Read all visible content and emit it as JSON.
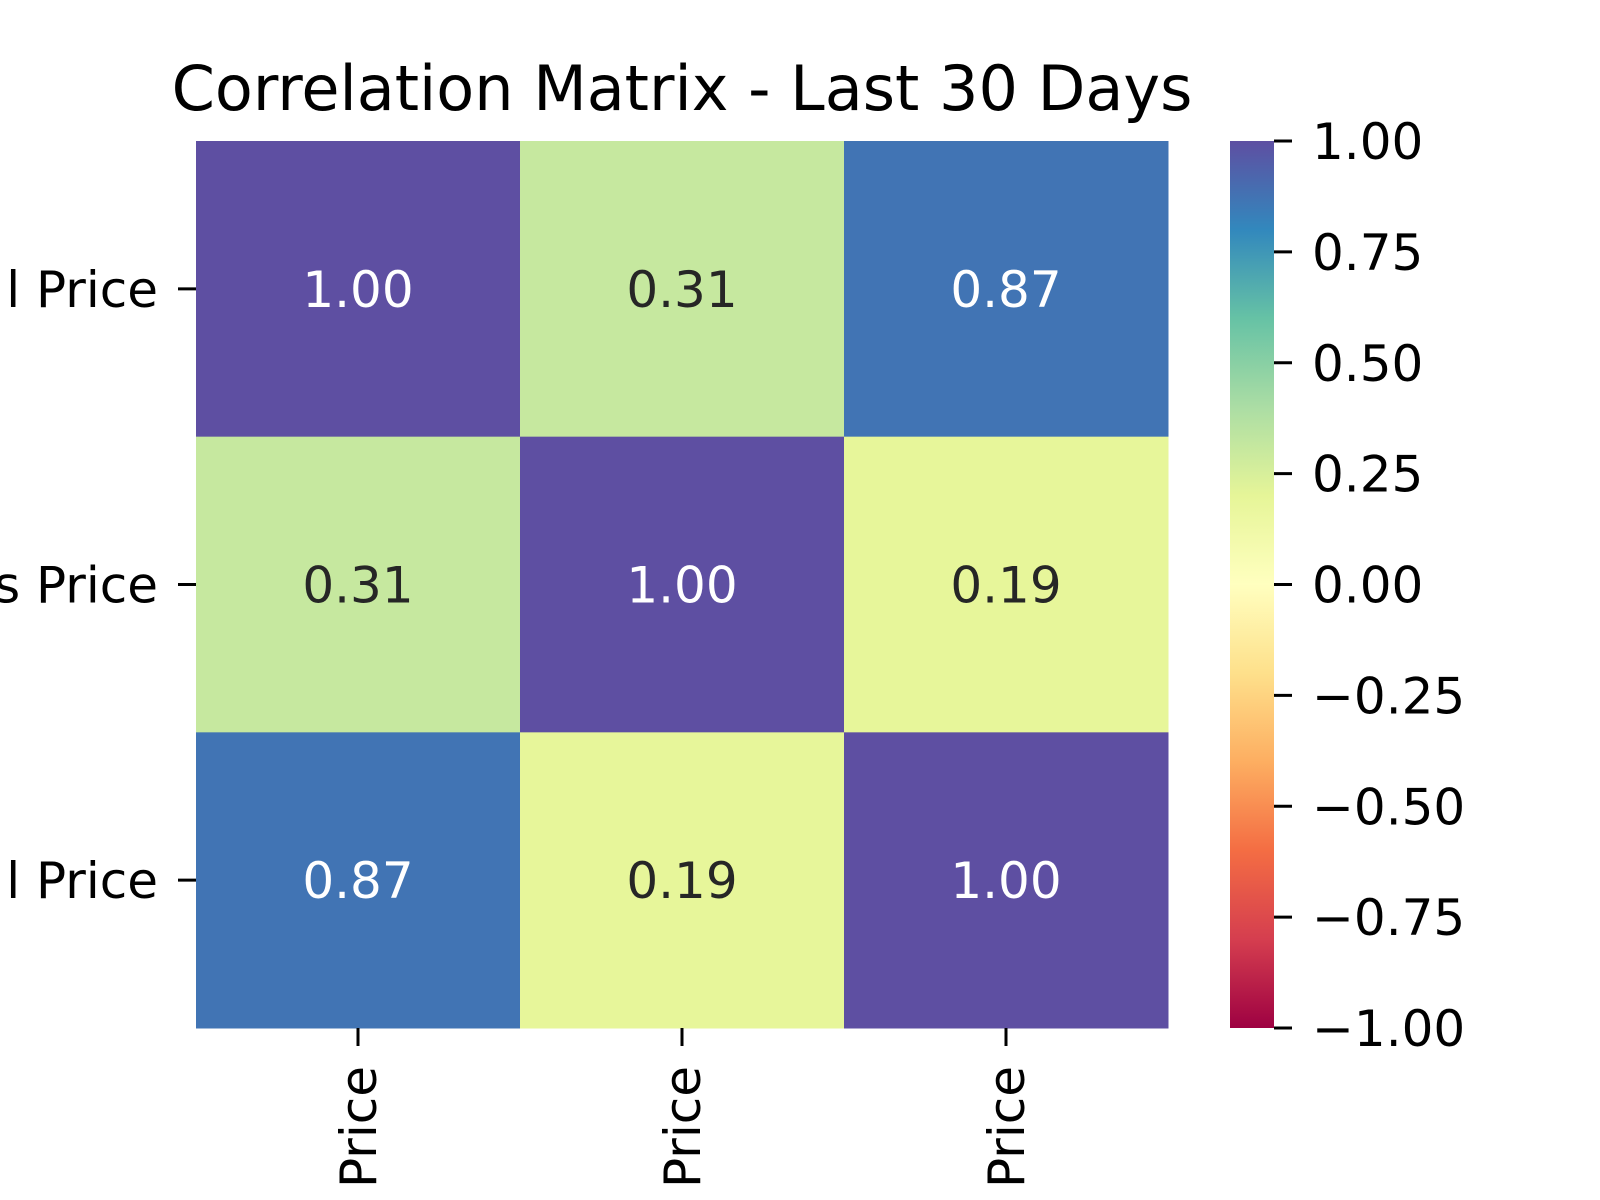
{
  "chart_data": {
    "type": "heatmap",
    "title": "Correlation Matrix - Last 30 Days",
    "xlabel": "",
    "ylabel": "",
    "row_labels": [
      "l Price",
      "s Price",
      "l Price"
    ],
    "col_labels": [
      "Price",
      "Price",
      "Price"
    ],
    "values": [
      [
        1.0,
        0.31,
        0.87
      ],
      [
        0.31,
        1.0,
        0.19
      ],
      [
        0.87,
        0.19,
        1.0
      ]
    ],
    "cell_labels": [
      [
        "1.00",
        "0.31",
        "0.87"
      ],
      [
        "0.31",
        "1.00",
        "0.19"
      ],
      [
        "0.87",
        "0.19",
        "1.00"
      ]
    ],
    "colormap": "Spectral",
    "vmin": -1.0,
    "vmax": 1.0,
    "colorbar": {
      "ticks": [
        1.0,
        0.75,
        0.5,
        0.25,
        0.0,
        -0.25,
        -0.5,
        -0.75,
        -1.0
      ],
      "tick_labels": [
        "1.00",
        "0.75",
        "0.50",
        "0.25",
        "0.00",
        "−0.25",
        "−0.50",
        "−0.75",
        "−1.00"
      ]
    },
    "annotation_colors": {
      "light": "#ffffff",
      "dark": "#262626"
    }
  }
}
